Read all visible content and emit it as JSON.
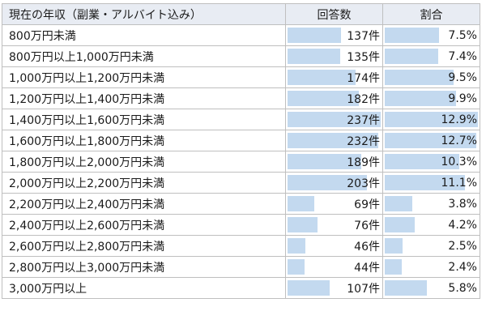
{
  "chart_data": {
    "type": "table",
    "columns": [
      "現在の年収（副業・アルバイト込み）",
      "回答数",
      "割合"
    ],
    "rows": [
      {
        "label": "800万円未満",
        "count": 137,
        "count_text": "137件",
        "pct": 7.5,
        "pct_text": "7.5%"
      },
      {
        "label": "800万円以上1,000万円未満",
        "count": 135,
        "count_text": "135件",
        "pct": 7.4,
        "pct_text": "7.4%"
      },
      {
        "label": "1,000万円以上1,200万円未満",
        "count": 174,
        "count_text": "174件",
        "pct": 9.5,
        "pct_text": "9.5%"
      },
      {
        "label": "1,200万円以上1,400万円未満",
        "count": 182,
        "count_text": "182件",
        "pct": 9.9,
        "pct_text": "9.9%"
      },
      {
        "label": "1,400万円以上1,600万円未満",
        "count": 237,
        "count_text": "237件",
        "pct": 12.9,
        "pct_text": "12.9%"
      },
      {
        "label": "1,600万円以上1,800万円未満",
        "count": 232,
        "count_text": "232件",
        "pct": 12.7,
        "pct_text": "12.7%"
      },
      {
        "label": "1,800万円以上2,000万円未満",
        "count": 189,
        "count_text": "189件",
        "pct": 10.3,
        "pct_text": "10.3%"
      },
      {
        "label": "2,000万円以上2,200万円未満",
        "count": 203,
        "count_text": "203件",
        "pct": 11.1,
        "pct_text": "11.1%"
      },
      {
        "label": "2,200万円以上2,400万円未満",
        "count": 69,
        "count_text": "69件",
        "pct": 3.8,
        "pct_text": "3.8%"
      },
      {
        "label": "2,400万円以上2,600万円未満",
        "count": 76,
        "count_text": "76件",
        "pct": 4.2,
        "pct_text": "4.2%"
      },
      {
        "label": "2,600万円以上2,800万円未満",
        "count": 46,
        "count_text": "46件",
        "pct": 2.5,
        "pct_text": "2.5%"
      },
      {
        "label": "2,800万円以上3,000万円未満",
        "count": 44,
        "count_text": "44件",
        "pct": 2.4,
        "pct_text": "2.4%"
      },
      {
        "label": "3,000万円以上",
        "count": 107,
        "count_text": "107件",
        "pct": 5.8,
        "pct_text": "5.8%"
      }
    ],
    "count_bar_max": 240,
    "pct_bar_max": 13.0
  },
  "colors": {
    "bar": "#c3d9ef",
    "header_bg": "#e8ecf3",
    "border": "#bfbfbf"
  }
}
